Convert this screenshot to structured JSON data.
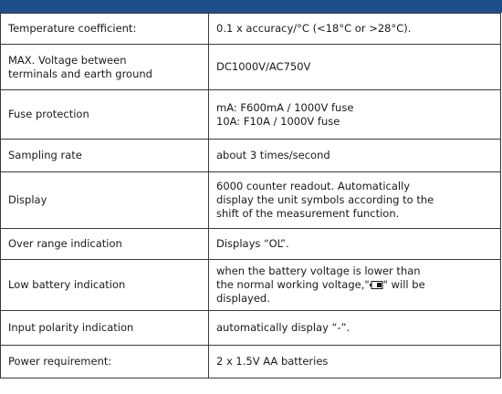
{
  "table": {
    "rows": [
      {
        "label": [
          "Temperature coefficient:"
        ],
        "value": [
          "0.1 x accuracy/°C (<18°C or >28°C)."
        ]
      },
      {
        "label": [
          "MAX. Voltage between",
          "terminals and earth ground"
        ],
        "value": [
          "DC1000V/AC750V"
        ]
      },
      {
        "label": [
          "Fuse protection"
        ],
        "value": [
          "mA: F600mA / 1000V fuse",
          "10A: F10A / 1000V fuse"
        ]
      },
      {
        "label": [
          "Sampling rate"
        ],
        "value": [
          "about 3 times/second"
        ]
      },
      {
        "label": [
          "Display"
        ],
        "value": [
          "6000 counter readout. Automatically",
          "display the unit symbols according to the",
          "shift of the measurement function."
        ]
      },
      {
        "label": [
          "Over range indication"
        ],
        "value": [
          "Displays “OL”."
        ]
      },
      {
        "label": [
          "Low battery indication"
        ],
        "value": [
          "when the battery voltage is lower than",
          [
            "the normal working voltage,\"",
            "\" will be"
          ],
          "displayed."
        ]
      },
      {
        "label": [
          "Input polarity indication"
        ],
        "value": [
          "automatically display “-”."
        ]
      },
      {
        "label": [
          "Power requirement:"
        ],
        "value": [
          "2 x 1.5V AA batteries"
        ]
      }
    ]
  }
}
